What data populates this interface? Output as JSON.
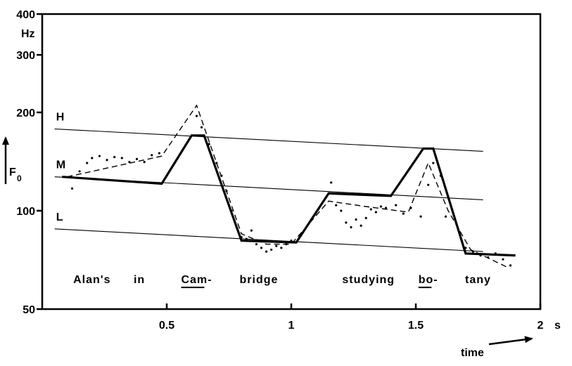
{
  "chart_data": {
    "type": "line",
    "xlabel": "time",
    "ylabel": "F",
    "ylabel_subscript": "0",
    "y_unit": "Hz",
    "x_unit": "s",
    "xlim": [
      0,
      2
    ],
    "ylim": [
      50,
      400
    ],
    "y_scale": "log",
    "x_ticks": [
      0.5,
      1,
      1.5,
      2
    ],
    "x_tick_labels": [
      "0.5",
      "1",
      "1.5",
      "2"
    ],
    "y_ticks": [
      50,
      100,
      200,
      300,
      400
    ],
    "y_tick_labels": [
      "50",
      "100",
      "200",
      "300",
      "400"
    ],
    "grid": false,
    "level_labels": [
      "H",
      "M",
      "L"
    ],
    "reference_lines": [
      {
        "name": "H",
        "x": [
          0.05,
          1.77
        ],
        "y": [
          178,
          152
        ]
      },
      {
        "name": "M",
        "x": [
          0.05,
          1.77
        ],
        "y": [
          127,
          108
        ]
      },
      {
        "name": "L",
        "x": [
          0.05,
          1.77
        ],
        "y": [
          88,
          75
        ]
      }
    ],
    "words": [
      {
        "text": "Alan's",
        "x": 0.2,
        "underlined": false
      },
      {
        "text": "in",
        "x": 0.39,
        "underlined": false
      },
      {
        "text": "Cam-",
        "x": 0.62,
        "underlined": true
      },
      {
        "text": "bridge",
        "x": 0.87,
        "underlined": false
      },
      {
        "text": "studying",
        "x": 1.31,
        "underlined": false
      },
      {
        "text": "bo-",
        "x": 1.55,
        "underlined": true
      },
      {
        "text": "tany",
        "x": 1.75,
        "underlined": false
      }
    ],
    "series": [
      {
        "style": "solid-thick",
        "x": [
          0.08,
          0.48,
          0.6,
          0.65,
          0.8,
          1.02,
          1.15,
          1.4,
          1.53,
          1.57,
          1.7,
          1.9
        ],
        "y": [
          127,
          121,
          170,
          170,
          81,
          80,
          113,
          111,
          155,
          155,
          74,
          73
        ]
      },
      {
        "style": "dashed",
        "x": [
          0.1,
          0.48,
          0.62,
          0.7,
          0.8,
          0.9,
          1.0,
          1.15,
          1.3,
          1.47,
          1.55,
          1.63,
          1.72,
          1.87
        ],
        "y": [
          127,
          147,
          210,
          140,
          85,
          79,
          79,
          107,
          103,
          99,
          140,
          100,
          76,
          67
        ]
      },
      {
        "style": "dotted",
        "x": [
          0.12,
          0.15,
          0.18,
          0.2,
          0.23,
          0.26,
          0.29,
          0.32,
          0.35,
          0.38,
          0.41,
          0.44,
          0.47,
          0.62,
          0.64,
          0.67,
          0.7,
          0.72,
          0.74,
          0.76,
          0.78,
          0.8,
          0.82,
          0.84,
          0.86,
          0.88,
          0.9,
          0.92,
          0.94,
          0.96,
          0.98,
          1.0,
          1.16,
          1.18,
          1.2,
          1.22,
          1.24,
          1.26,
          1.28,
          1.3,
          1.32,
          1.34,
          1.36,
          1.38,
          1.42,
          1.45,
          1.48,
          1.52,
          1.55,
          1.57,
          1.6,
          1.62,
          1.7,
          1.73,
          1.76,
          1.79,
          1.82,
          1.85,
          1.88
        ],
        "y": [
          117,
          132,
          140,
          145,
          147,
          143,
          146,
          145,
          141,
          144,
          141,
          148,
          150,
          195,
          180,
          160,
          140,
          128,
          115,
          100,
          89,
          83,
          82,
          87,
          79,
          77,
          75,
          76,
          78,
          77,
          79,
          81,
          122,
          104,
          100,
          92,
          89,
          94,
          90,
          95,
          101,
          99,
          103,
          102,
          104,
          98,
          102,
          96,
          120,
          140,
          128,
          96,
          77,
          75,
          73,
          72,
          74,
          71,
          68
        ]
      }
    ]
  }
}
